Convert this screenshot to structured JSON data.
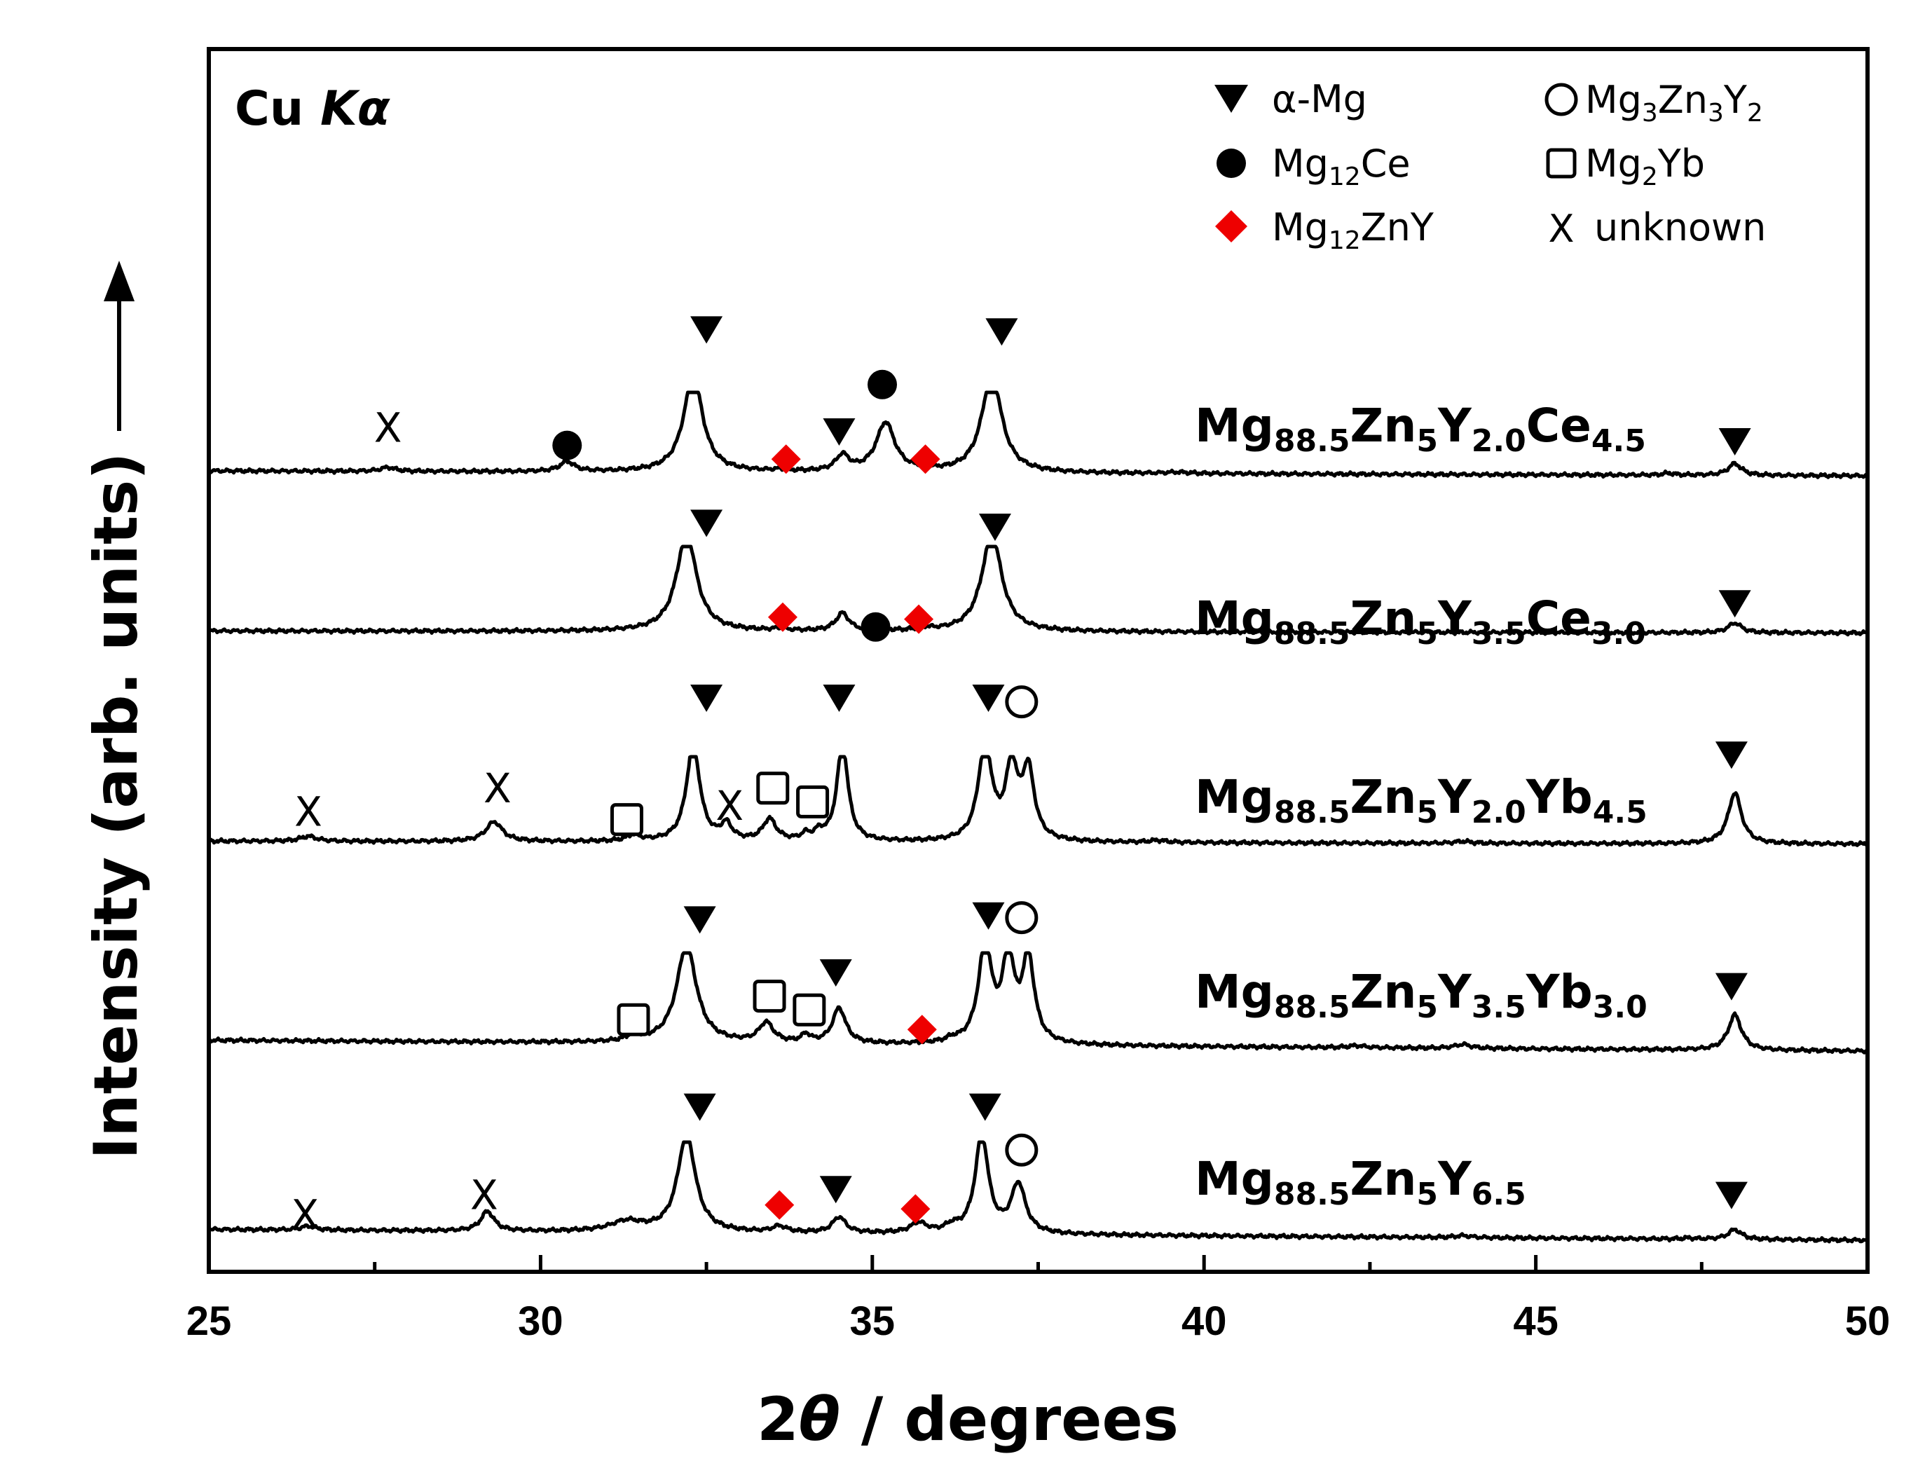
{
  "chart_data": {
    "type": "line",
    "xlabel_prefix": "2",
    "xlabel_theta": "θ",
    "xlabel_suffix": " / degrees",
    "ylabel": "Intensity (arb. units)",
    "xlim": [
      25,
      50
    ],
    "xticks": [
      25,
      30,
      35,
      40,
      45,
      50
    ],
    "radiation": {
      "base": "Cu ",
      "symbol": "Kα"
    },
    "legend": {
      "alpha_mg": "α-Mg",
      "mg12ce": {
        "base": "Mg",
        "sub": "12",
        "rest": "Ce"
      },
      "mg12zny": {
        "base": "Mg",
        "sub": "12",
        "rest": "ZnY"
      },
      "mg3zn3y2": {
        "p1": "Mg",
        "s1": "3",
        "p2": "Zn",
        "s2": "3",
        "p3": "Y",
        "s3": "2"
      },
      "mg2yb": {
        "base": "Mg",
        "sub": "2",
        "rest": "Yb"
      },
      "unknown": "unknown",
      "unknown_symbol": "X"
    },
    "colors": {
      "line": "#000000",
      "mg12zny_marker": "#ee0000"
    },
    "series": [
      {
        "name": "Mg88.5Zn5Y2.0Ce4.5",
        "label": [
          [
            "Mg",
            ""
          ],
          [
            "88.5",
            "sub"
          ],
          [
            "Zn",
            ""
          ],
          [
            "5",
            "sub"
          ],
          [
            "Y",
            ""
          ],
          [
            "2.0",
            "sub"
          ],
          [
            "Ce",
            ""
          ],
          [
            "4.5",
            "sub"
          ]
        ],
        "baseline_left": 1.0,
        "baseline_right": 0.75,
        "peaks": [
          [
            27.7,
            0.2,
            0.13
          ],
          [
            30.4,
            0.5,
            0.13
          ],
          [
            32.3,
            5.0,
            0.17
          ],
          [
            33.6,
            0.08,
            0.12
          ],
          [
            34.55,
            0.8,
            0.12
          ],
          [
            35.2,
            2.5,
            0.17
          ],
          [
            35.8,
            0.08,
            0.12
          ],
          [
            36.8,
            5.0,
            0.18
          ],
          [
            47.0,
            0.1,
            0.1
          ],
          [
            48.0,
            0.6,
            0.12
          ],
          [
            39.6,
            0.06,
            0.2
          ]
        ],
        "markers": [
          {
            "type": "x",
            "x": 27.7,
            "y": 3.2
          },
          {
            "type": "mg12ce",
            "x": 30.4,
            "y": 2.3
          },
          {
            "type": "alpha_mg",
            "x": 32.5,
            "y": 8.2
          },
          {
            "type": "mg12zny",
            "x": 33.7,
            "y": 1.6
          },
          {
            "type": "alpha_mg",
            "x": 34.5,
            "y": 3.0
          },
          {
            "type": "mg12ce",
            "x": 35.15,
            "y": 5.4
          },
          {
            "type": "mg12zny",
            "x": 35.8,
            "y": 1.6
          },
          {
            "type": "alpha_mg",
            "x": 36.95,
            "y": 8.1
          },
          {
            "type": "alpha_mg",
            "x": 48.0,
            "y": 2.5
          }
        ]
      },
      {
        "name": "Mg88.5Zn5Y3.5Ce3.0",
        "label": [
          [
            "Mg",
            ""
          ],
          [
            "88.5",
            "sub"
          ],
          [
            "Zn",
            ""
          ],
          [
            "5",
            "sub"
          ],
          [
            "Y",
            ""
          ],
          [
            "3.5",
            "sub"
          ],
          [
            "Ce",
            ""
          ],
          [
            "3.0",
            "sub"
          ]
        ],
        "baseline_left": 0.7,
        "baseline_right": 0.6,
        "peaks": [
          [
            32.2,
            5.0,
            0.18
          ],
          [
            33.6,
            0.1,
            0.12
          ],
          [
            34.55,
            0.9,
            0.12
          ],
          [
            35.15,
            0.05,
            0.12
          ],
          [
            35.8,
            0.12,
            0.12
          ],
          [
            36.8,
            5.0,
            0.18
          ],
          [
            48.0,
            0.5,
            0.12
          ]
        ],
        "markers": [
          {
            "type": "alpha_mg",
            "x": 32.5,
            "y": 6.2
          },
          {
            "type": "alpha_mg",
            "x": 36.85,
            "y": 6.0
          },
          {
            "type": "mg12zny",
            "x": 33.65,
            "y": 1.4
          },
          {
            "type": "mg12ce",
            "x": 35.05,
            "y": 0.9
          },
          {
            "type": "mg12zny",
            "x": 35.7,
            "y": 1.3
          },
          {
            "type": "alpha_mg",
            "x": 48.0,
            "y": 2.1
          }
        ]
      },
      {
        "name": "Mg88.5Zn5Y2.0Yb4.5",
        "label": [
          [
            "Mg",
            ""
          ],
          [
            "88.5",
            "sub"
          ],
          [
            "Zn",
            ""
          ],
          [
            "5",
            "sub"
          ],
          [
            "Y",
            ""
          ],
          [
            "2.0",
            "sub"
          ],
          [
            "Yb",
            ""
          ],
          [
            "4.5",
            "sub"
          ]
        ],
        "baseline_left": 0.7,
        "baseline_right": 0.55,
        "peaks": [
          [
            26.5,
            0.25,
            0.15
          ],
          [
            29.3,
            1.0,
            0.15
          ],
          [
            31.4,
            0.3,
            0.12
          ],
          [
            32.3,
            5.0,
            0.12
          ],
          [
            32.8,
            0.8,
            0.1
          ],
          [
            33.45,
            1.1,
            0.12
          ],
          [
            34.0,
            0.3,
            0.08
          ],
          [
            34.2,
            0.4,
            0.08
          ],
          [
            34.55,
            5.0,
            0.1
          ],
          [
            36.7,
            5.0,
            0.12
          ],
          [
            37.1,
            3.6,
            0.11
          ],
          [
            37.35,
            3.5,
            0.11
          ],
          [
            48.0,
            2.6,
            0.12
          ],
          [
            39.3,
            0.1,
            0.15
          ],
          [
            43.9,
            0.1,
            0.15
          ]
        ],
        "markers": [
          {
            "type": "x",
            "x": 26.5,
            "y": 2.2
          },
          {
            "type": "x",
            "x": 29.35,
            "y": 3.4
          },
          {
            "type": "mg2yb",
            "x": 31.3,
            "y": 1.8
          },
          {
            "type": "x",
            "x": 32.85,
            "y": 2.5
          },
          {
            "type": "mg2yb",
            "x": 33.5,
            "y": 3.4
          },
          {
            "type": "mg2yb",
            "x": 34.1,
            "y": 2.7
          },
          {
            "type": "alpha_mg",
            "x": 32.5,
            "y": 8.0
          },
          {
            "type": "alpha_mg",
            "x": 34.5,
            "y": 8.0
          },
          {
            "type": "alpha_mg",
            "x": 36.75,
            "y": 8.0
          },
          {
            "type": "mg3zn3y2",
            "x": 37.25,
            "y": 7.8
          },
          {
            "type": "alpha_mg",
            "x": 47.95,
            "y": 5.1
          }
        ]
      },
      {
        "name": "Mg88.5Zn5Y3.5Yb3.0",
        "label": [
          [
            "Mg",
            ""
          ],
          [
            "88.5",
            "sub"
          ],
          [
            "Zn",
            ""
          ],
          [
            "5",
            "sub"
          ],
          [
            "Y",
            ""
          ],
          [
            "3.5",
            "sub"
          ],
          [
            "Yb",
            ""
          ],
          [
            "3.0",
            "sub"
          ]
        ],
        "baseline_left": 0.55,
        "baseline_right": 0.0,
        "peaks": [
          [
            31.4,
            0.3,
            0.12
          ],
          [
            32.2,
            5.0,
            0.18
          ],
          [
            33.4,
            1.0,
            0.13
          ],
          [
            34.0,
            0.4,
            0.08
          ],
          [
            34.5,
            1.8,
            0.12
          ],
          [
            36.2,
            0.15,
            0.1
          ],
          [
            36.7,
            5.0,
            0.12
          ],
          [
            37.05,
            4.2,
            0.11
          ],
          [
            37.35,
            4.3,
            0.11
          ],
          [
            48.0,
            1.8,
            0.12
          ],
          [
            43.9,
            0.2,
            0.15
          ],
          [
            42.3,
            0.1,
            0.15
          ]
        ],
        "markers": [
          {
            "type": "mg2yb",
            "x": 31.4,
            "y": 1.6
          },
          {
            "type": "alpha_mg",
            "x": 32.4,
            "y": 6.7
          },
          {
            "type": "mg2yb",
            "x": 33.45,
            "y": 2.8
          },
          {
            "type": "mg2yb",
            "x": 34.05,
            "y": 2.1
          },
          {
            "type": "alpha_mg",
            "x": 34.45,
            "y": 4.0
          },
          {
            "type": "mg12zny",
            "x": 35.75,
            "y": 1.1
          },
          {
            "type": "alpha_mg",
            "x": 36.75,
            "y": 6.9
          },
          {
            "type": "mg3zn3y2",
            "x": 37.25,
            "y": 6.8
          },
          {
            "type": "alpha_mg",
            "x": 47.95,
            "y": 3.3
          }
        ]
      },
      {
        "name": "Mg88.5Zn5Y6.5",
        "label": [
          [
            "Mg",
            ""
          ],
          [
            "88.5",
            "sub"
          ],
          [
            "Zn",
            ""
          ],
          [
            "5",
            "sub"
          ],
          [
            "Y",
            ""
          ],
          [
            "6.5",
            "sub"
          ]
        ],
        "baseline_left": 0.55,
        "baseline_right": 0.0,
        "peaks": [
          [
            26.5,
            0.2,
            0.13
          ],
          [
            29.2,
            1.0,
            0.12
          ],
          [
            31.3,
            0.5,
            0.3
          ],
          [
            32.2,
            5.0,
            0.16
          ],
          [
            33.6,
            0.3,
            0.13
          ],
          [
            34.5,
            0.8,
            0.12
          ],
          [
            35.7,
            0.5,
            0.15
          ],
          [
            36.2,
            0.3,
            0.12
          ],
          [
            36.65,
            5.0,
            0.12
          ],
          [
            37.2,
            2.5,
            0.13
          ],
          [
            48.0,
            0.5,
            0.12
          ],
          [
            43.9,
            0.1,
            0.15
          ],
          [
            47.3,
            0.05,
            0.1
          ]
        ],
        "markers": [
          {
            "type": "x",
            "x": 26.45,
            "y": 1.3
          },
          {
            "type": "x",
            "x": 29.15,
            "y": 2.3
          },
          {
            "type": "alpha_mg",
            "x": 32.4,
            "y": 6.8
          },
          {
            "type": "mg12zny",
            "x": 33.6,
            "y": 1.8
          },
          {
            "type": "alpha_mg",
            "x": 34.45,
            "y": 2.6
          },
          {
            "type": "mg12zny",
            "x": 35.65,
            "y": 1.6
          },
          {
            "type": "alpha_mg",
            "x": 36.7,
            "y": 6.8
          },
          {
            "type": "mg3zn3y2",
            "x": 37.25,
            "y": 4.6
          },
          {
            "type": "alpha_mg",
            "x": 47.95,
            "y": 2.3
          }
        ]
      }
    ]
  }
}
